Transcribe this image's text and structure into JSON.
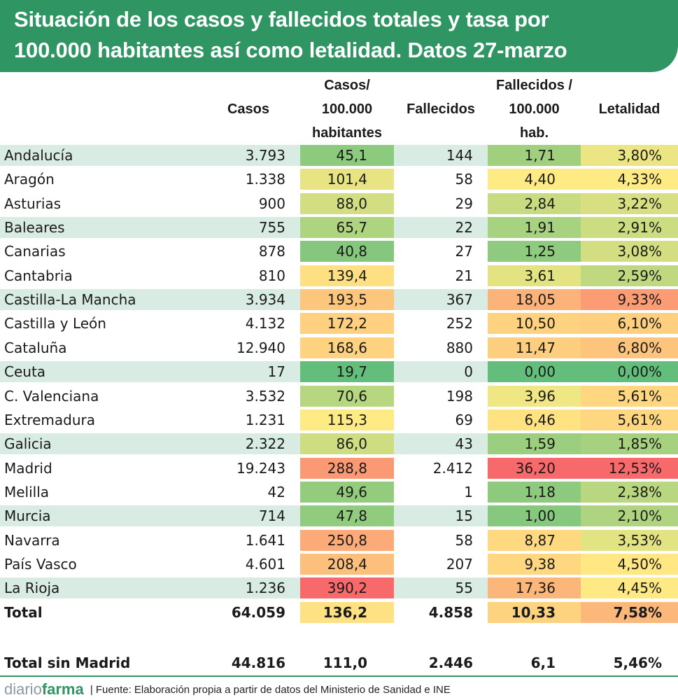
{
  "title": {
    "line1": "Situación de los casos y fallecidos totales y tasa por",
    "line2": "100.000 habitantes así como letalidad. Datos 27-marzo"
  },
  "headers": {
    "casos": "Casos",
    "tasa_l1": "Casos/",
    "tasa_l2": "100.000",
    "tasa_l3": "habitantes",
    "fallecidos": "Fallecidos",
    "ftasa_l1": "Fallecidos /",
    "ftasa_l2": "100.000",
    "ftasa_l3": "hab.",
    "letalidad": "Letalidad"
  },
  "colors": {
    "banner": "#2f9563",
    "row_stripe": "#d8ece3",
    "scale_low": "#63be7b",
    "scale_mid": "#ffeb84",
    "scale_high": "#f8696b"
  },
  "rows": [
    {
      "name": "Andalucía",
      "casos": "3.793",
      "tasa": "45,1",
      "fallecidos": "144",
      "ftasa": "1,71",
      "letalidad": "3,80%",
      "stripe": true
    },
    {
      "name": "Aragón",
      "casos": "1.338",
      "tasa": "101,4",
      "fallecidos": "58",
      "ftasa": "4,40",
      "letalidad": "4,33%",
      "stripe": false
    },
    {
      "name": "Asturias",
      "casos": "900",
      "tasa": "88,0",
      "fallecidos": "29",
      "ftasa": "2,84",
      "letalidad": "3,22%",
      "stripe": false
    },
    {
      "name": "Baleares",
      "casos": "755",
      "tasa": "65,7",
      "fallecidos": "22",
      "ftasa": "1,91",
      "letalidad": "2,91%",
      "stripe": true
    },
    {
      "name": "Canarias",
      "casos": "878",
      "tasa": "40,8",
      "fallecidos": "27",
      "ftasa": "1,25",
      "letalidad": "3,08%",
      "stripe": false
    },
    {
      "name": "Cantabria",
      "casos": "810",
      "tasa": "139,4",
      "fallecidos": "21",
      "ftasa": "3,61",
      "letalidad": "2,59%",
      "stripe": false
    },
    {
      "name": "Castilla-La Mancha",
      "casos": "3.934",
      "tasa": "193,5",
      "fallecidos": "367",
      "ftasa": "18,05",
      "letalidad": "9,33%",
      "stripe": true
    },
    {
      "name": "Castilla y León",
      "casos": "4.132",
      "tasa": "172,2",
      "fallecidos": "252",
      "ftasa": "10,50",
      "letalidad": "6,10%",
      "stripe": false
    },
    {
      "name": "Cataluña",
      "casos": "12.940",
      "tasa": "168,6",
      "fallecidos": "880",
      "ftasa": "11,47",
      "letalidad": "6,80%",
      "stripe": false
    },
    {
      "name": "Ceuta",
      "casos": "17",
      "tasa": "19,7",
      "fallecidos": "0",
      "ftasa": "0,00",
      "letalidad": "0,00%",
      "stripe": true
    },
    {
      "name": "C. Valenciana",
      "casos": "3.532",
      "tasa": "70,6",
      "fallecidos": "198",
      "ftasa": "3,96",
      "letalidad": "5,61%",
      "stripe": false
    },
    {
      "name": "Extremadura",
      "casos": "1.231",
      "tasa": "115,3",
      "fallecidos": "69",
      "ftasa": "6,46",
      "letalidad": "5,61%",
      "stripe": false
    },
    {
      "name": "Galicia",
      "casos": "2.322",
      "tasa": "86,0",
      "fallecidos": "43",
      "ftasa": "1,59",
      "letalidad": "1,85%",
      "stripe": true
    },
    {
      "name": "Madrid",
      "casos": "19.243",
      "tasa": "288,8",
      "fallecidos": "2.412",
      "ftasa": "36,20",
      "letalidad": "12,53%",
      "stripe": false
    },
    {
      "name": "Melilla",
      "casos": "42",
      "tasa": "49,6",
      "fallecidos": "1",
      "ftasa": "1,18",
      "letalidad": "2,38%",
      "stripe": false
    },
    {
      "name": "Murcia",
      "casos": "714",
      "tasa": "47,8",
      "fallecidos": "15",
      "ftasa": "1,00",
      "letalidad": "2,10%",
      "stripe": true
    },
    {
      "name": "Navarra",
      "casos": "1.641",
      "tasa": "250,8",
      "fallecidos": "58",
      "ftasa": "8,87",
      "letalidad": "3,53%",
      "stripe": false
    },
    {
      "name": "País Vasco",
      "casos": "4.601",
      "tasa": "208,4",
      "fallecidos": "207",
      "ftasa": "9,38",
      "letalidad": "4,50%",
      "stripe": false
    },
    {
      "name": "La Rioja",
      "casos": "1.236",
      "tasa": "390,2",
      "fallecidos": "55",
      "ftasa": "17,36",
      "letalidad": "4,45%",
      "stripe": true
    }
  ],
  "total": {
    "name": "Total",
    "casos": "64.059",
    "tasa": "136,2",
    "fallecidos": "4.858",
    "ftasa": "10,33",
    "letalidad": "7,58%"
  },
  "total_sin_madrid": {
    "name": "Total sin Madrid",
    "casos": "44.816",
    "tasa": "111,0",
    "fallecidos": "2.446",
    "ftasa": "6,1",
    "letalidad": "5,46%"
  },
  "footer": {
    "brand_part1": "diario",
    "brand_part2": "farma",
    "source": "| Fuente:  Elaboración propia a partir de datos del Ministerio de Sanidad e INE"
  }
}
